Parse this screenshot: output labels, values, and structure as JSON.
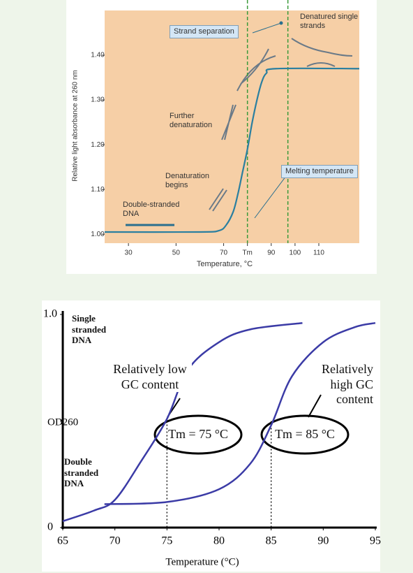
{
  "chart_data": [
    {
      "type": "line",
      "y_label": "Relative light absorbance at 260 nm",
      "x_label": "Temperature, °C",
      "xlim": [
        20,
        127
      ],
      "ylim": [
        0.98,
        1.5
      ],
      "xticks": [
        30,
        50,
        70,
        {
          "value": 80,
          "label": "Tm"
        },
        90,
        100,
        110
      ],
      "yticks": [
        {
          "value": 1,
          "label": "1.00"
        },
        {
          "value": 1.1,
          "label": "1.10"
        },
        {
          "value": 1.2,
          "label": "1.20"
        },
        {
          "value": 1.3,
          "label": "1.30"
        },
        {
          "value": 1.4,
          "label": "1.40"
        }
      ],
      "series": [
        {
          "color": "#2a7fa0",
          "x": [
            20,
            60,
            68,
            71,
            74,
            76,
            78,
            80,
            82,
            84,
            86,
            88,
            92,
            127
          ],
          "values": [
            1.005,
            1.005,
            1.008,
            1.02,
            1.05,
            1.09,
            1.14,
            1.19,
            1.25,
            1.3,
            1.34,
            1.36,
            1.37,
            1.37
          ]
        }
      ],
      "vlines": [
        80,
        97
      ],
      "vline_color": "#3a9a3a",
      "annotations": [
        "Strand separation",
        "Denatured single strands",
        "Further denaturation",
        "Denaturation begins",
        "Double-stranded DNA",
        "Melting temperature"
      ]
    },
    {
      "type": "line",
      "y_label": "OD260",
      "x_label": "Temperature (°C)",
      "xlim": [
        65,
        95
      ],
      "ylim": [
        0,
        1
      ],
      "xticks": [
        65,
        70,
        75,
        80,
        85,
        90,
        95
      ],
      "yticks": [
        0,
        {
          "value": 0.5,
          "label": null
        },
        {
          "value": 1,
          "label": "1.0"
        }
      ],
      "series": [
        {
          "color": "#3b3ba6",
          "x": [
            65,
            68,
            70,
            72.5,
            75,
            77,
            80,
            83,
            88
          ],
          "values": [
            0.03,
            0.08,
            0.13,
            0.31,
            0.51,
            0.74,
            0.87,
            0.93,
            0.96
          ]
        },
        {
          "color": "#3b3ba6",
          "x": [
            69,
            75,
            80,
            83,
            85,
            87,
            90,
            93,
            95
          ],
          "values": [
            0.11,
            0.12,
            0.18,
            0.3,
            0.48,
            0.71,
            0.87,
            0.94,
            0.96
          ]
        }
      ],
      "vlines": [
        75,
        85
      ],
      "vline_color": "#000000",
      "annotations": [
        "Single stranded DNA",
        "Double stranded DNA",
        "Relatively low GC content",
        "Relatively high GC content",
        "Tm = 75 °C",
        "Tm = 85 °C"
      ]
    }
  ]
}
